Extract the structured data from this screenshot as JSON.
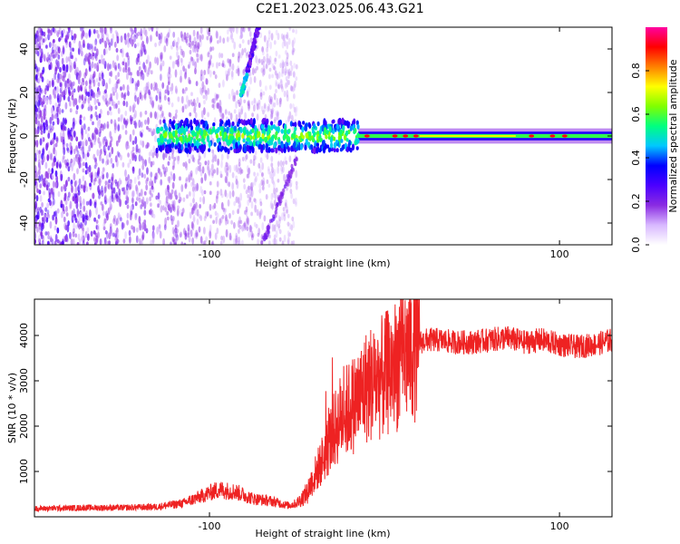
{
  "figure_title": "C2E1.2023.025.06.43.G21",
  "colors": {
    "snr_line": "#ee2222",
    "axis": "#000000"
  },
  "chart_data": [
    {
      "type": "heatmap",
      "title": "",
      "xlabel": "Height of straight line (km)",
      "ylabel": "Frequency (Hz)",
      "xlim": [
        -200,
        130
      ],
      "ylim": [
        -50,
        50
      ],
      "xticks": [
        -100,
        100
      ],
      "xtick_labels": [
        "-100",
        "100"
      ],
      "yticks": [
        -40,
        -20,
        0,
        20,
        40
      ],
      "ytick_labels": [
        "-40",
        "-20",
        "0",
        "20",
        "40"
      ],
      "colorbar": {
        "label": "Normalized spectral amplitude",
        "range": [
          0,
          1
        ],
        "ticks": [
          0.0,
          0.2,
          0.4,
          0.6,
          0.8
        ],
        "tick_labels": [
          "0.0",
          "0.2",
          "0.4",
          "0.6",
          "0.8"
        ],
        "colormap": [
          "#ffffff",
          "#d8b8ff",
          "#8a2be2",
          "#4b00ff",
          "#0000ff",
          "#00c8ff",
          "#00ff80",
          "#80ff00",
          "#ffff00",
          "#ff8000",
          "#ff0000",
          "#ff00a0"
        ]
      },
      "features": {
        "noise_region_x": [
          -200,
          -50
        ],
        "doppler_band_x": [
          -130,
          130
        ],
        "doppler_band_center_hz": 0,
        "rising_track": {
          "x": [
            -82,
            -72
          ],
          "y": [
            18,
            50
          ]
        },
        "falling_track": {
          "x": [
            -70,
            -50
          ],
          "y": [
            -50,
            -10
          ]
        }
      }
    },
    {
      "type": "line",
      "title": "",
      "xlabel": "Height of straight line (km)",
      "ylabel": "SNR (10 * v/v)",
      "xlim": [
        -200,
        130
      ],
      "ylim": [
        0,
        4800
      ],
      "xticks": [
        -100,
        100
      ],
      "xtick_labels": [
        "-100",
        "100"
      ],
      "yticks": [
        1000,
        2000,
        3000,
        4000
      ],
      "ytick_labels": [
        "1000",
        "2000",
        "3000",
        "4000"
      ],
      "series": [
        {
          "x": [
            -200,
            -170,
            -150,
            -130,
            -115,
            -105,
            -95,
            -85,
            -75,
            -65,
            -55,
            -50,
            -45,
            -40,
            -35,
            -30,
            -25,
            -20,
            -15,
            -10,
            -5,
            0,
            5,
            10,
            15,
            20,
            25,
            30,
            40,
            50,
            60,
            70,
            80,
            90,
            100,
            110,
            120,
            130
          ],
          "y": [
            180,
            200,
            200,
            220,
            300,
            450,
            600,
            550,
            400,
            350,
            250,
            300,
            500,
            900,
            1300,
            1800,
            2200,
            2400,
            2600,
            2900,
            3000,
            3100,
            3300,
            3500,
            3700,
            3850,
            3900,
            3900,
            3850,
            3850,
            3900,
            3950,
            3850,
            3900,
            3800,
            3750,
            3800,
            3900
          ]
        }
      ]
    }
  ]
}
